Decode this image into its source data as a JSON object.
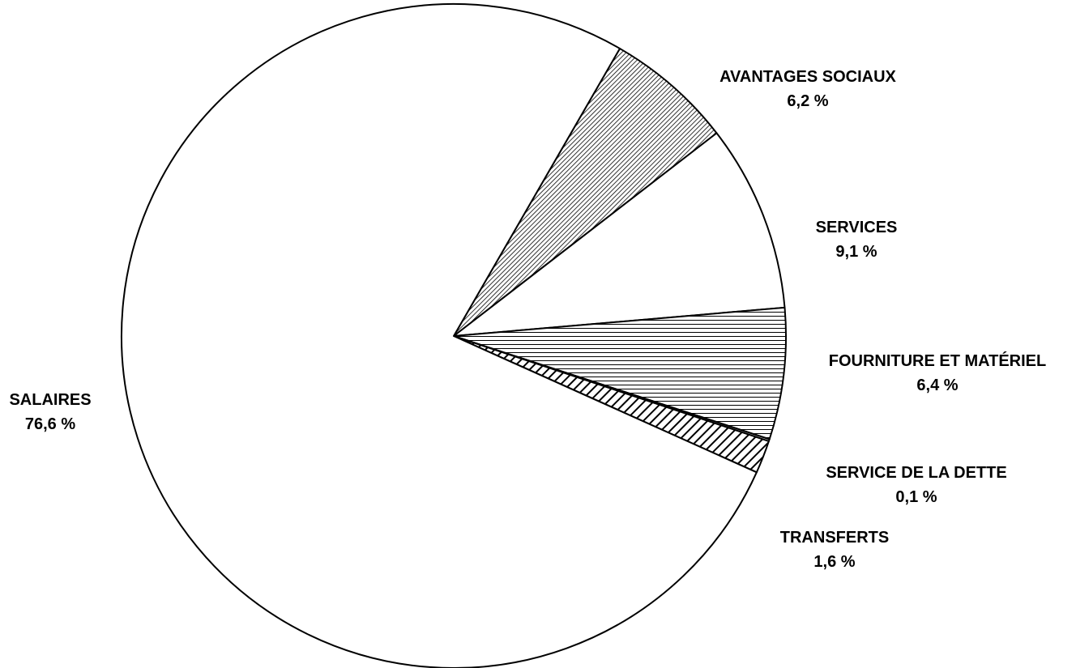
{
  "chart_data": {
    "type": "pie",
    "slices": [
      {
        "name": "AVANTAGES SOCIAUX",
        "value": 6.2,
        "value_label": "6,2 %",
        "fill": "dense-hatch"
      },
      {
        "name": "SERVICES",
        "value": 9.1,
        "value_label": "9,1 %",
        "fill": "white"
      },
      {
        "name": "FOURNITURE ET MATÉRIEL",
        "value": 6.4,
        "value_label": "6,4 %",
        "fill": "horizontal-lines"
      },
      {
        "name": "SERVICE DE LA DETTE",
        "value": 0.1,
        "value_label": "0,1 %",
        "fill": "white"
      },
      {
        "name": "TRANSFERTS",
        "value": 1.6,
        "value_label": "1,6 %",
        "fill": "diagonal-stripes"
      },
      {
        "name": "SALAIRES",
        "value": 76.6,
        "value_label": "76,6 %",
        "fill": "white"
      }
    ],
    "colors": {
      "stroke": "#000000",
      "background": "#ffffff"
    }
  }
}
